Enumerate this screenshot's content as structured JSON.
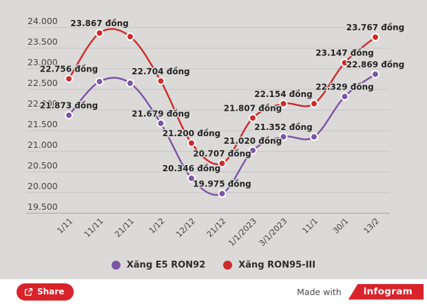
{
  "chart_data": {
    "type": "line",
    "title": "",
    "xlabel": "",
    "ylabel": "",
    "unit": "đồng",
    "x": [
      "1/11",
      "11/11",
      "21/11",
      "1/12",
      "12/12",
      "21/12",
      "1/1/2023",
      "3/1/2023",
      "11/1",
      "30/1",
      "13/2"
    ],
    "series": [
      {
        "name": "Xăng E5 RON92",
        "color": "#7d55a6",
        "values": [
          21873,
          22690,
          22650,
          21679,
          20346,
          19975,
          21020,
          21352,
          21352,
          22329,
          22869
        ],
        "point_labels": [
          "21.873 đồng",
          "",
          "",
          "21.679 đồng",
          "20.346 đồng",
          "19.975 đồng",
          "21.020 đồng",
          "21.352 đồng",
          "",
          "22.329 đồng",
          "22.869 đồng"
        ]
      },
      {
        "name": "Xăng RON95-III",
        "color": "#ce2b2b",
        "values": [
          22756,
          23867,
          23780,
          22704,
          21200,
          20707,
          21807,
          22154,
          22154,
          23147,
          23767
        ],
        "point_labels": [
          "22.756 đồng",
          "23.867 đồng",
          "",
          "22.704 đồng",
          "21.200 đồng",
          "20.707 đồng",
          "21.807 đồng",
          "22.154 đồng",
          "",
          "23.147 đồng",
          "23.767 đồng"
        ]
      }
    ],
    "ylim": [
      19500,
      24000
    ],
    "y_tick_step": 500,
    "y_ticks": [
      "24.000",
      "23.500",
      "23.000",
      "22.500",
      "22.000",
      "21.500",
      "21.000",
      "20.500",
      "20.000",
      "19.500"
    ],
    "grid": true,
    "legend_position": "bottom"
  },
  "legend": {
    "items": [
      {
        "label": "Xăng E5 RON92",
        "color": "#7d55a6"
      },
      {
        "label": "Xăng RON95-III",
        "color": "#ce2b2b"
      }
    ]
  },
  "footer": {
    "share_label": "Share",
    "made_with_label": "Made with",
    "brand_name": "infogram",
    "brand_color": "#d8232a"
  }
}
